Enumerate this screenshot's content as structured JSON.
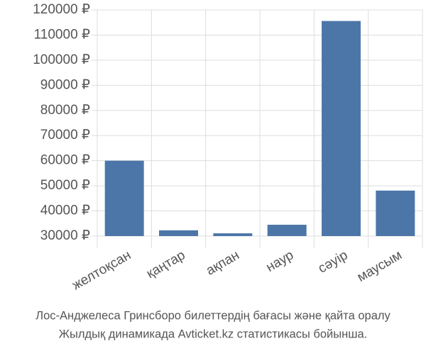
{
  "chart_data": {
    "type": "bar",
    "categories": [
      "желтоқсан",
      "қаңтар",
      "ақпан",
      "наур",
      "сәуір",
      "маусым"
    ],
    "values": [
      60000,
      32300,
      31100,
      34500,
      115600,
      48100
    ],
    "color": "#4c76a8",
    "ylim": [
      30000,
      120000
    ],
    "yticks": [
      {
        "value": 30000,
        "label": "30000 ₽"
      },
      {
        "value": 40000,
        "label": "40000 ₽"
      },
      {
        "value": 50000,
        "label": "50000 ₽"
      },
      {
        "value": 60000,
        "label": "60000 ₽"
      },
      {
        "value": 70000,
        "label": "70000 ₽"
      },
      {
        "value": 80000,
        "label": "80000 ₽"
      },
      {
        "value": 90000,
        "label": "90000 ₽"
      },
      {
        "value": 100000,
        "label": "100000 ₽"
      },
      {
        "value": 110000,
        "label": "110000 ₽"
      },
      {
        "value": 120000,
        "label": "120000 ₽"
      }
    ],
    "grid": true,
    "caption": [
      "Лос-Анджелеса Гринсборо билеттердің бағасы және қайта оралу",
      "Жылдық динамикада Avticket.kz статистикасы бойынша."
    ]
  }
}
